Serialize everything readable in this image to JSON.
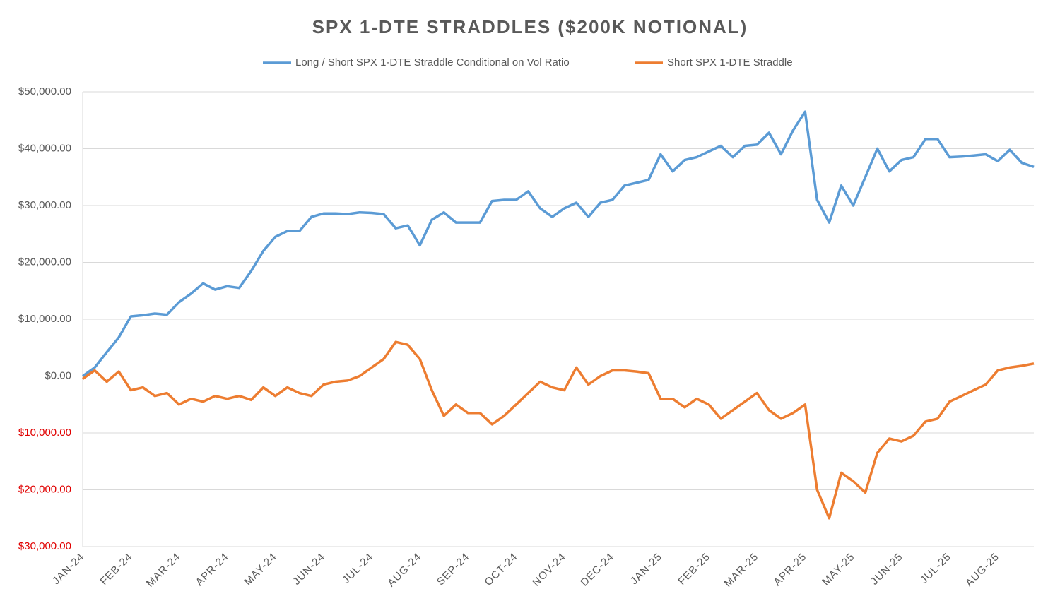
{
  "chart_data": {
    "type": "line",
    "title": "SPX 1-DTE STRADDLES ($200K NOTIONAL)",
    "categories": [
      "JAN-24",
      null,
      null,
      null,
      "FEB-24",
      null,
      null,
      null,
      "MAR-24",
      null,
      null,
      null,
      "APR-24",
      null,
      null,
      null,
      "MAY-24",
      null,
      null,
      null,
      "JUN-24",
      null,
      null,
      null,
      "JUL-24",
      null,
      null,
      null,
      "AUG-24",
      null,
      null,
      null,
      "SEP-24",
      null,
      null,
      null,
      "OCT-24",
      null,
      null,
      null,
      "NOV-24",
      null,
      null,
      null,
      "DEC-24",
      null,
      null,
      null,
      "JAN-25",
      null,
      null,
      null,
      "FEB-25",
      null,
      null,
      null,
      "MAR-25",
      null,
      null,
      null,
      "APR-25",
      null,
      null,
      null,
      "MAY-25",
      null,
      null,
      null,
      "JUN-25",
      null,
      null,
      null,
      "JUL-25",
      null,
      null,
      null,
      "AUG-25",
      null,
      null,
      null
    ],
    "series": [
      {
        "name": "Long / Short SPX 1-DTE Straddle Conditional on Vol Ratio",
        "color": "#5b9bd5",
        "values": [
          0,
          1500,
          4200,
          6800,
          10500,
          10700,
          11000,
          10800,
          13000,
          14500,
          16300,
          15200,
          15800,
          15500,
          18500,
          22000,
          24500,
          25500,
          25500,
          28000,
          28600,
          28600,
          28500,
          28800,
          28700,
          28500,
          26000,
          26500,
          23000,
          27500,
          28800,
          27000,
          27000,
          27000,
          30800,
          31000,
          31000,
          32500,
          29500,
          28000,
          29500,
          30500,
          28000,
          30500,
          31000,
          33500,
          34000,
          34500,
          39000,
          36000,
          38000,
          38500,
          39500,
          40500,
          38500,
          40500,
          40700,
          42800,
          39000,
          43200,
          46500,
          31000,
          27000,
          33500,
          30000,
          35000,
          40000,
          36000,
          38000,
          38500,
          41700,
          41700,
          38500,
          38600,
          38800,
          39000,
          37800,
          39800,
          37500,
          36800
        ]
      },
      {
        "name": "Short SPX 1-DTE Straddle",
        "color": "#ed7d31",
        "values": [
          -500,
          1000,
          -1000,
          800,
          -2500,
          -2000,
          -3500,
          -3000,
          -5000,
          -4000,
          -4500,
          -3500,
          -4000,
          -3500,
          -4200,
          -2000,
          -3500,
          -2000,
          -3000,
          -3500,
          -1500,
          -1000,
          -800,
          0,
          1500,
          3000,
          6000,
          5500,
          3000,
          -2500,
          -7000,
          -5000,
          -6500,
          -6500,
          -8500,
          -7000,
          -5000,
          -3000,
          -1000,
          -2000,
          -2500,
          1500,
          -1500,
          0,
          1000,
          1000,
          800,
          500,
          -4000,
          -4000,
          -5500,
          -4000,
          -5000,
          -7500,
          -6000,
          -4500,
          -3000,
          -6000,
          -7500,
          -6500,
          -5000,
          -20000,
          -25000,
          -17000,
          -18500,
          -20500,
          -13500,
          -11000,
          -11500,
          -10500,
          -8000,
          -7500,
          -4500,
          -3500,
          -2500,
          -1500,
          1000,
          1500,
          1800,
          2200
        ]
      }
    ],
    "ylim": [
      -30000,
      50000
    ],
    "yticks": [
      {
        "value": -30000,
        "label": "$30,000.00"
      },
      {
        "value": -20000,
        "label": "$20,000.00"
      },
      {
        "value": -10000,
        "label": "$10,000.00"
      },
      {
        "value": 0,
        "label": "$0.00"
      },
      {
        "value": 10000,
        "label": "$10,000.00"
      },
      {
        "value": 20000,
        "label": "$20,000.00"
      },
      {
        "value": 30000,
        "label": "$30,000.00"
      },
      {
        "value": 40000,
        "label": "$40,000.00"
      },
      {
        "value": 50000,
        "label": "$50,000.00"
      }
    ],
    "grid": true
  }
}
